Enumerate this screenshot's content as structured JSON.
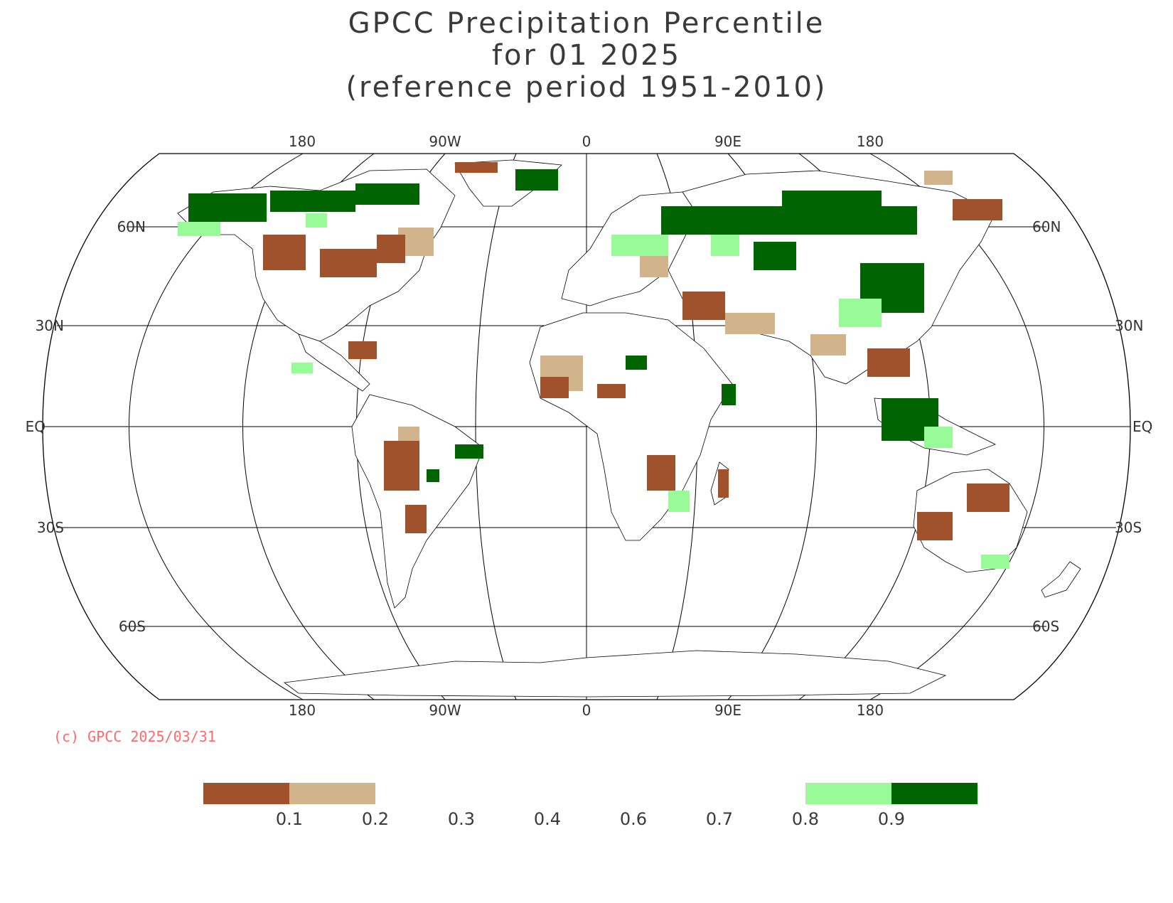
{
  "title": {
    "line1": "GPCC Precipitation Percentile",
    "line2": "for 01 2025",
    "line3": "(reference period 1951-2010)"
  },
  "lon_labels_top": [
    "180",
    "90W",
    "0",
    "90E",
    "180"
  ],
  "lon_labels_bottom": [
    "180",
    "90W",
    "0",
    "90E",
    "180"
  ],
  "lat_labels": [
    "60N",
    "30N",
    "EQ",
    "30S",
    "60S"
  ],
  "copyright": "(c) GPCC 2025/03/31",
  "colors": {
    "very_dry": "#a0522d",
    "dry": "#d2b48c",
    "wet": "#98fb98",
    "very_wet": "#006400",
    "outline": "#000000"
  },
  "legend": {
    "tick_labels": [
      "0.1",
      "0.2",
      "0.3",
      "0.4",
      "0.6",
      "0.7",
      "0.8",
      "0.9"
    ],
    "classes": [
      {
        "upper": 0.1,
        "color": "#a0522d"
      },
      {
        "upper": 0.2,
        "color": "#d2b48c"
      },
      {
        "upper": 0.3,
        "color": ""
      },
      {
        "upper": 0.4,
        "color": ""
      },
      {
        "upper": 0.6,
        "color": ""
      },
      {
        "upper": 0.7,
        "color": ""
      },
      {
        "upper": 0.8,
        "color": ""
      },
      {
        "upper": 0.9,
        "color": "#98fb98"
      },
      {
        "upper": 1.0,
        "color": "#006400"
      }
    ]
  }
}
